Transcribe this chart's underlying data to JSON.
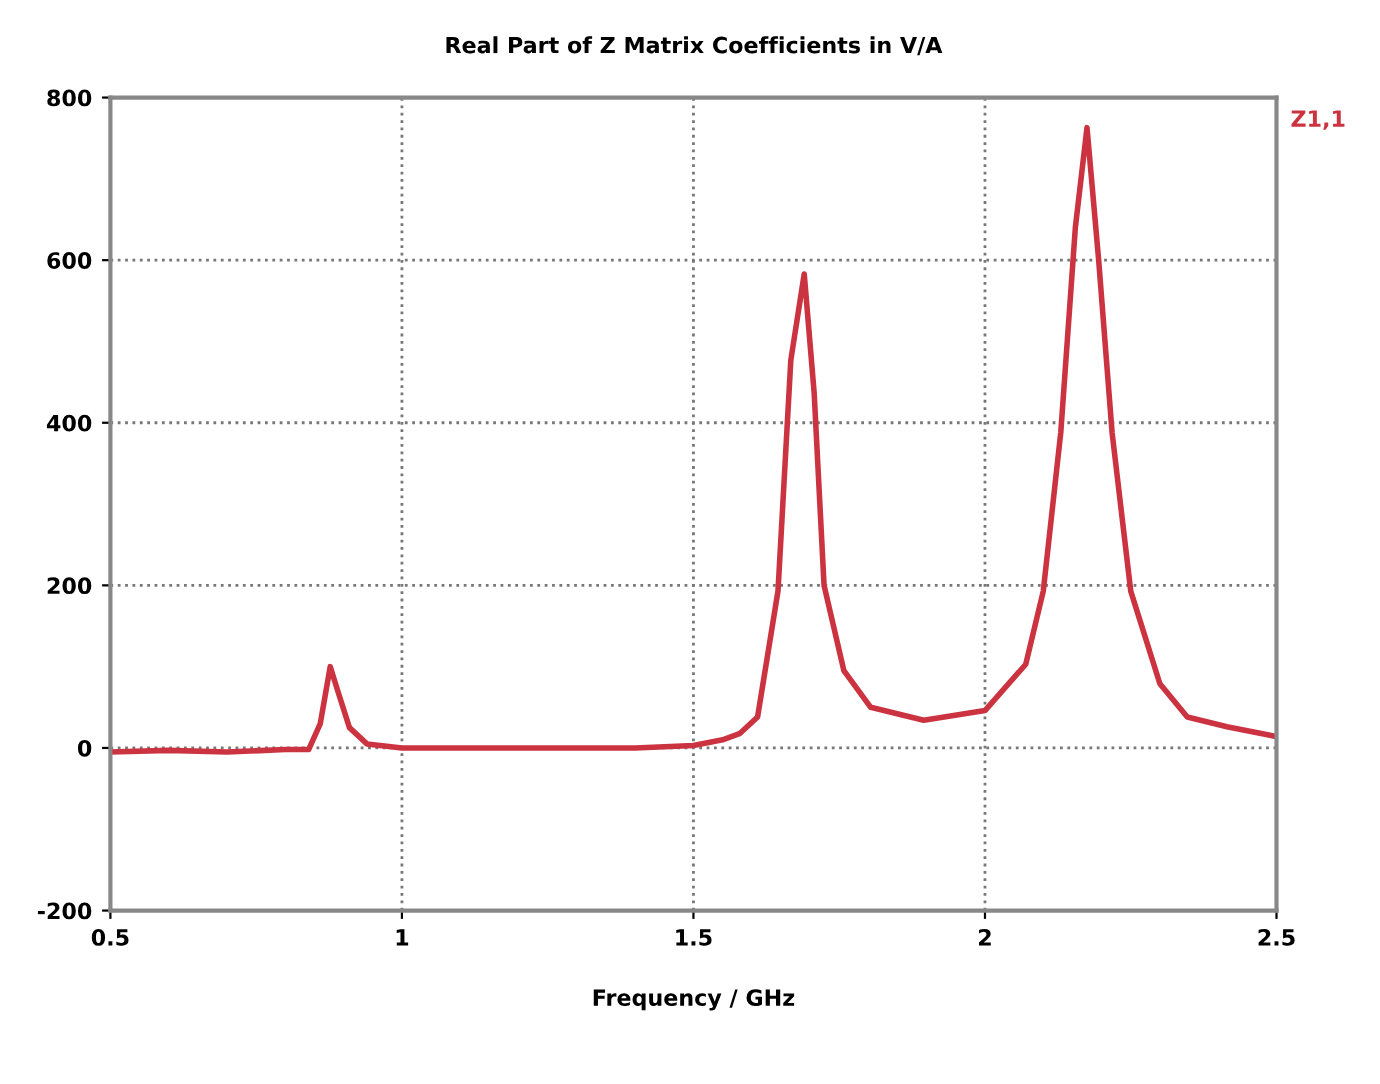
{
  "chart_data": {
    "type": "line",
    "title": "Real Part of Z Matrix Coefficients in V/A",
    "xlabel": "Frequency / GHz",
    "xlim": [
      0.5,
      2.5
    ],
    "xticks": [
      0.5,
      1,
      1.5,
      2,
      2.5
    ],
    "ylim": [
      -200,
      800
    ],
    "yticks": [
      -200,
      0,
      200,
      400,
      600,
      800
    ],
    "grid": true,
    "line_style": "solid",
    "marker": "none",
    "series": [
      {
        "name": "Z1,1",
        "color": "#cc3340",
        "x": [
          0.5,
          0.6,
          0.7,
          0.8,
          0.84,
          0.86,
          0.877,
          0.89,
          0.91,
          0.94,
          1.0,
          1.2,
          1.4,
          1.5,
          1.55,
          1.58,
          1.61,
          1.645,
          1.667,
          1.69,
          1.707,
          1.724,
          1.758,
          1.804,
          1.895,
          2.0,
          2.07,
          2.1,
          2.13,
          2.155,
          2.175,
          2.195,
          2.218,
          2.25,
          2.3,
          2.347,
          2.415,
          2.5
        ],
        "values": [
          -5,
          -3,
          -5,
          -2,
          -2,
          30,
          100,
          70,
          25,
          5,
          0,
          0,
          0,
          3,
          10,
          18,
          38,
          193,
          477,
          583,
          437,
          200,
          95,
          50,
          34,
          46,
          103,
          193,
          388,
          640,
          763,
          600,
          388,
          193,
          79,
          38,
          26,
          14
        ]
      }
    ]
  }
}
